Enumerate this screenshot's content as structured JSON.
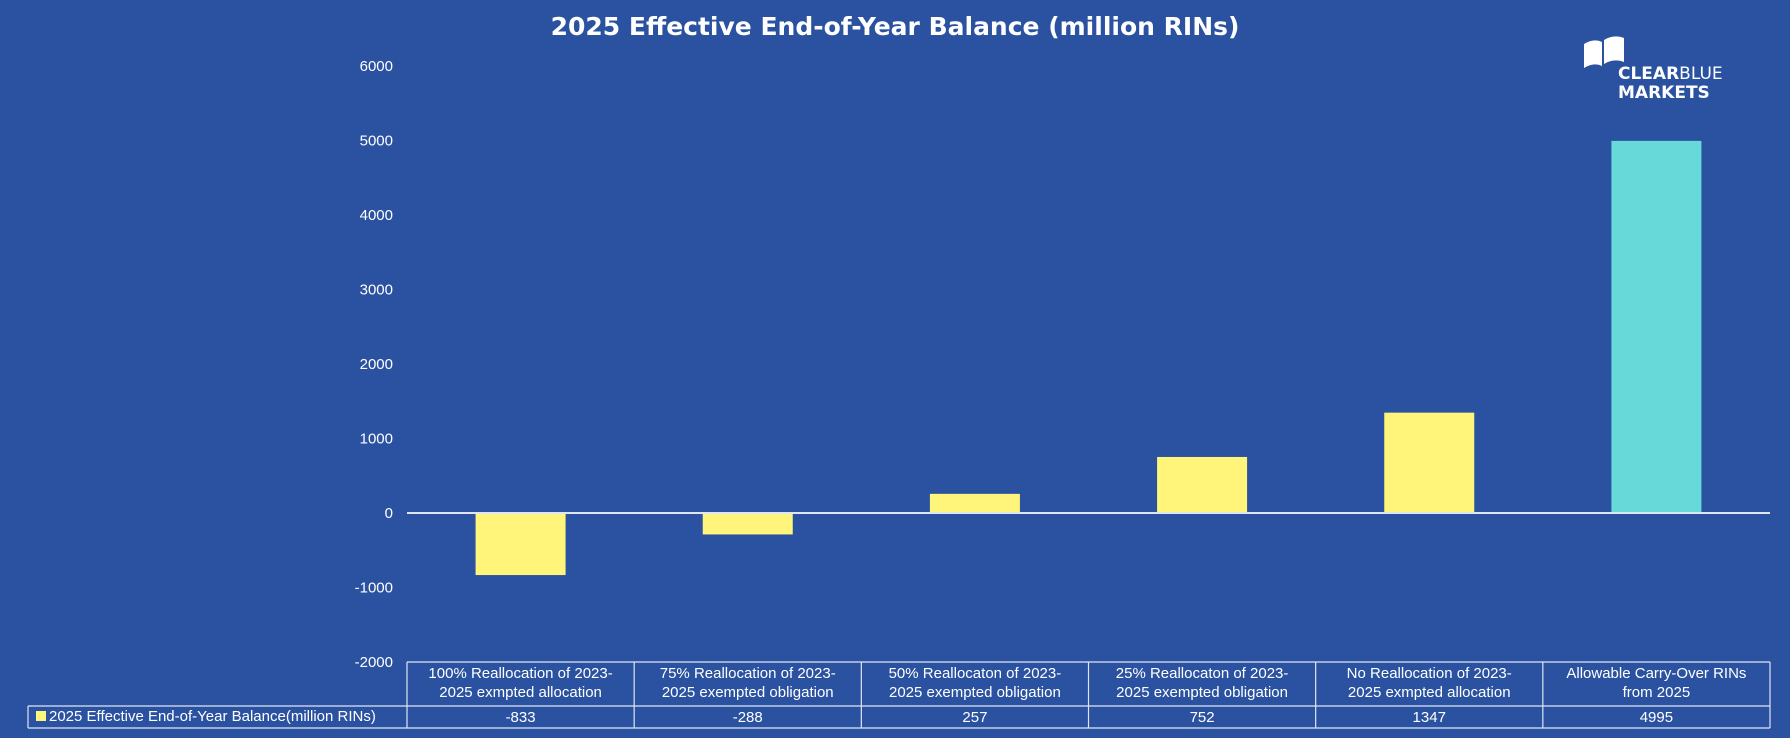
{
  "chart_data": {
    "type": "bar",
    "title": "2025 Effective End-of-Year Balance (million RINs)",
    "categories": [
      "100% Reallocation of 2023-2025 exmpted allocation",
      "75% Reallocation of 2023-2025 exempted obligation",
      "50% Reallocaton of 2023-2025 exempted obligation",
      "25% Reallocaton of 2023-2025 exempted obligation",
      "No Reallocation of 2023-2025 exmpted allocation",
      "Allowable Carry-Over RINs from 2025"
    ],
    "category_lines": [
      [
        "100% Reallocation of 2023-",
        "2025 exmpted allocation"
      ],
      [
        "75% Reallocation of 2023-",
        "2025 exempted obligation"
      ],
      [
        "50% Reallocaton of 2023-",
        "2025 exempted obligation"
      ],
      [
        "25% Reallocaton of 2023-",
        "2025 exempted obligation"
      ],
      [
        "No Reallocation of 2023-",
        "2025 exmpted allocation"
      ],
      [
        "Allowable Carry-Over RINs",
        "from 2025"
      ]
    ],
    "series": [
      {
        "name": "2025 Effective End-of-Year Balance(million RINs)",
        "values": [
          -833,
          -288,
          257,
          752,
          1347,
          4995
        ]
      }
    ],
    "value_labels": [
      "-833",
      "-288",
      "257",
      "752",
      "1347",
      "4995"
    ],
    "ylim": [
      -2000,
      6000
    ],
    "yticks": [
      "6000",
      "5000",
      "4000",
      "3000",
      "2000",
      "1000",
      "0",
      "-1000",
      "-2000"
    ],
    "colors": {
      "background": "#2a52a0",
      "bar": "#fff57a",
      "highlight_bar": "#68d9d9",
      "axis": "#dfe6f2",
      "text": "#ffffff"
    },
    "legend_position": "data-table",
    "grid": false
  },
  "logo": {
    "line1_bold": "CLEAR",
    "line1_light": "BLUE",
    "line2": "MARKETS"
  }
}
